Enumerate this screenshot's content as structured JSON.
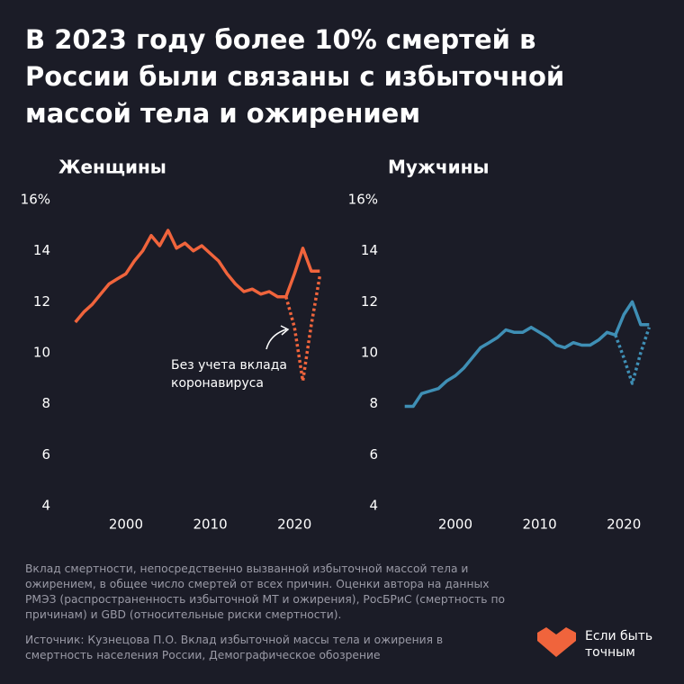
{
  "title": "В 2023 году более 10% смертей в России были связаны с избыточной массой тела и ожирением",
  "chart_data": [
    {
      "type": "line",
      "title": "Женщины",
      "x": [
        1994,
        1995,
        1996,
        1997,
        1998,
        1999,
        2000,
        2001,
        2002,
        2003,
        2004,
        2005,
        2006,
        2007,
        2008,
        2009,
        2010,
        2011,
        2012,
        2013,
        2014,
        2015,
        2016,
        2017,
        2018,
        2019,
        2020,
        2021,
        2022,
        2023
      ],
      "series": [
        {
          "color": "#f0643c",
          "style": "solid",
          "values": [
            11.2,
            11.6,
            11.9,
            12.3,
            12.7,
            12.9,
            13.1,
            13.6,
            14.0,
            14.6,
            14.2,
            14.8,
            14.1,
            14.3,
            14.0,
            14.2,
            13.9,
            13.6,
            13.1,
            12.7,
            12.4,
            12.5,
            12.3,
            12.4,
            12.2,
            12.2,
            13.1,
            14.1,
            13.2,
            13.2
          ]
        },
        {
          "color": "#f0643c",
          "style": "dotted",
          "values": [
            null,
            null,
            null,
            null,
            null,
            null,
            null,
            null,
            null,
            null,
            null,
            null,
            null,
            null,
            null,
            null,
            null,
            null,
            null,
            null,
            null,
            null,
            null,
            null,
            null,
            12.2,
            11.0,
            8.9,
            11.1,
            13.0
          ]
        }
      ],
      "annotation": "Без учета вклада коронавируса",
      "xlim": [
        1992,
        2025
      ],
      "xticks": [
        2000,
        2010,
        2020
      ],
      "ylim": [
        4,
        16
      ],
      "yticks": [
        4,
        6,
        8,
        10,
        12,
        14,
        {
          "value": 16,
          "label": "16%"
        }
      ],
      "grid": false
    },
    {
      "type": "line",
      "title": "Мужчины",
      "x": [
        1994,
        1995,
        1996,
        1997,
        1998,
        1999,
        2000,
        2001,
        2002,
        2003,
        2004,
        2005,
        2006,
        2007,
        2008,
        2009,
        2010,
        2011,
        2012,
        2013,
        2014,
        2015,
        2016,
        2017,
        2018,
        2019,
        2020,
        2021,
        2022,
        2023
      ],
      "series": [
        {
          "color": "#3f8fb5",
          "style": "solid",
          "values": [
            7.9,
            7.9,
            8.4,
            8.5,
            8.6,
            8.9,
            9.1,
            9.4,
            9.8,
            10.2,
            10.4,
            10.6,
            10.9,
            10.8,
            10.8,
            11.0,
            10.8,
            10.6,
            10.3,
            10.2,
            10.4,
            10.3,
            10.3,
            10.5,
            10.8,
            10.7,
            11.5,
            12.0,
            11.1,
            11.1
          ]
        },
        {
          "color": "#3f8fb5",
          "style": "dotted",
          "values": [
            null,
            null,
            null,
            null,
            null,
            null,
            null,
            null,
            null,
            null,
            null,
            null,
            null,
            null,
            null,
            null,
            null,
            null,
            null,
            null,
            null,
            null,
            null,
            null,
            null,
            10.7,
            9.8,
            8.8,
            10.0,
            11.0
          ]
        }
      ],
      "xlim": [
        1992,
        2025
      ],
      "xticks": [
        2000,
        2010,
        2020
      ],
      "ylim": [
        4,
        16
      ],
      "yticks": [
        4,
        6,
        8,
        10,
        12,
        14,
        {
          "value": 16,
          "label": "16%"
        }
      ],
      "grid": false
    }
  ],
  "note": "Вклад смертности, непосредственно вызванной избыточной массой тела и ожирением, в общее число смертей от всех причин. Оценки автора на данных РМЭЗ (распространенность избыточной МТ и ожирения), РосБРиС (смертность по причинам) и GBD (относительные риски смертности).",
  "source": "Источник: Кузнецова П.О. Вклад избыточной массы тела и ожирения в смертность населения России, Демографическое обозрение",
  "brand": "Если быть точным"
}
